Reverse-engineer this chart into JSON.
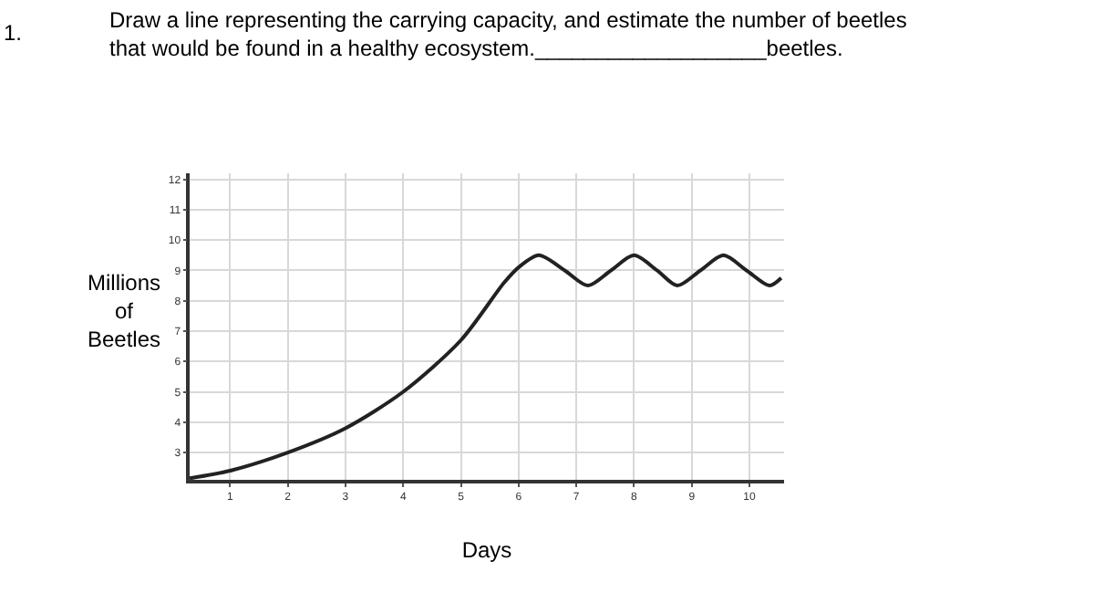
{
  "chart_data": {
    "type": "line",
    "title": "Draw a line representing the carrying capacity, and estimate the number of beetles\nthat would be found in a healthy ecosystem.___________________beetles.",
    "annotations": [
      "1."
    ],
    "xlabel": "Days",
    "ylabel": "Millions\nof\nBeetles",
    "x": [
      0.3,
      1,
      2,
      3,
      4,
      5,
      5.75,
      6,
      6.35,
      6.8,
      7.2,
      7.6,
      8.0,
      8.4,
      8.75,
      9.15,
      9.55,
      9.95,
      10.35,
      10.55
    ],
    "series": [
      {
        "color": "#222222",
        "values": [
          2.15,
          2.4,
          3.0,
          3.8,
          5.0,
          6.7,
          8.6,
          9.1,
          9.5,
          9.0,
          8.5,
          9.0,
          9.5,
          9.0,
          8.5,
          9.0,
          9.5,
          9.0,
          8.5,
          8.75
        ]
      }
    ],
    "xlim": [
      0.3,
      10.6
    ],
    "ylim": [
      2.1,
      12.2
    ],
    "xticks": [
      1,
      2,
      3,
      4,
      5,
      6,
      7,
      8,
      9,
      10
    ],
    "yticks": [
      3,
      4,
      5,
      6,
      7,
      8,
      9,
      10,
      11,
      12
    ],
    "grid": true,
    "marker": "none",
    "line_style": "solid"
  }
}
